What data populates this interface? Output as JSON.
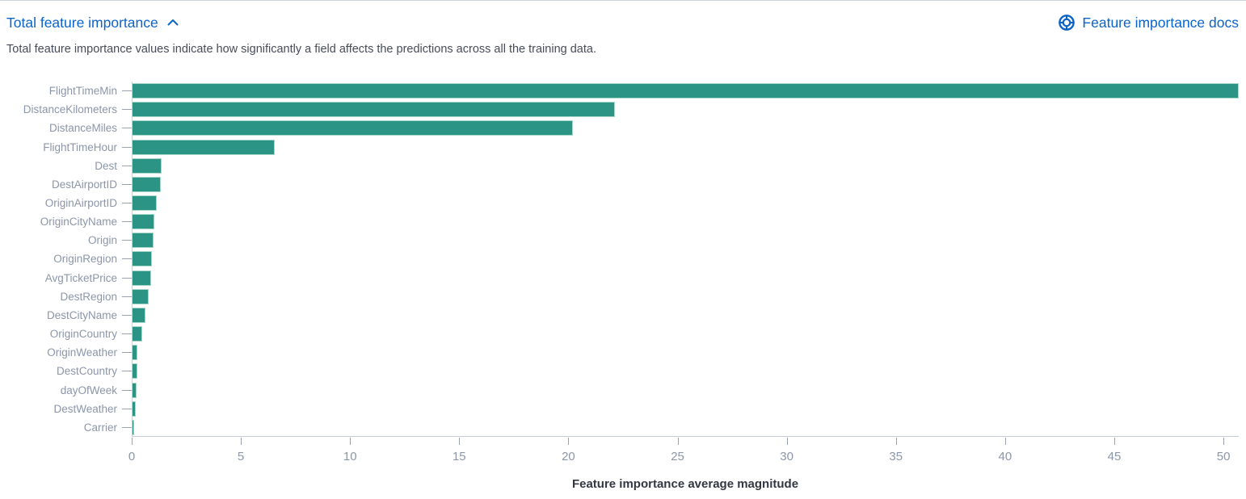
{
  "header": {
    "title": "Total feature importance",
    "docs_link": "Feature importance docs"
  },
  "description": "Total feature importance values indicate how significantly a field affects the predictions across all the training data.",
  "colors": {
    "link_blue": "#0b64c8",
    "bar_teal": "#2b9484",
    "axis_label_gray": "#8b96a9"
  },
  "chart_data": {
    "type": "bar",
    "orientation": "horizontal",
    "title": "",
    "xlabel": "Feature importance average magnitude",
    "ylabel": "",
    "categories": [
      "FlightTimeMin",
      "DistanceKilometers",
      "DistanceMiles",
      "FlightTimeHour",
      "Dest",
      "DestAirportID",
      "OriginAirportID",
      "OriginCityName",
      "Origin",
      "OriginRegion",
      "AvgTicketPrice",
      "DestRegion",
      "DestCityName",
      "OriginCountry",
      "OriginWeather",
      "DestCountry",
      "dayOfWeek",
      "DestWeather",
      "Carrier"
    ],
    "values": [
      50.7,
      22.1,
      20.2,
      6.5,
      1.35,
      1.3,
      1.1,
      1.0,
      0.95,
      0.9,
      0.85,
      0.73,
      0.6,
      0.44,
      0.23,
      0.21,
      0.17,
      0.15,
      0.08
    ],
    "xlim": [
      0,
      50.7
    ],
    "xticks": [
      0,
      5,
      10,
      15,
      20,
      25,
      30,
      35,
      40,
      45,
      50
    ],
    "grid": false,
    "legend": false
  }
}
